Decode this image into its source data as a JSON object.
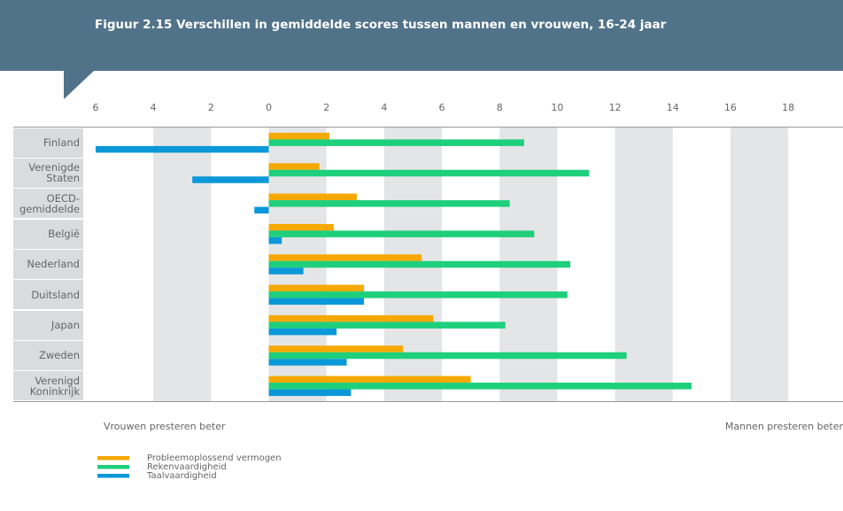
{
  "chart_data": {
    "type": "hbar",
    "title": "Figuur 2.15 Verschillen in gemiddelde scores tussen mannen en vrouwen, 16-24 jaar",
    "categories": [
      "Finland",
      "Verenigde Staten",
      "OECD-gemiddelde",
      "België",
      "Nederland",
      "Duitsland",
      "Japan",
      "Zweden",
      "Verenigd Koninkrijk"
    ],
    "series": [
      {
        "name": "Probleemoplossend vermogen",
        "color": "#f5a800",
        "values": [
          2.1,
          1.75,
          3.05,
          2.25,
          5.3,
          3.3,
          5.7,
          4.65,
          7.0
        ]
      },
      {
        "name": "Rekenvaardigheid",
        "color": "#1ecf7c",
        "values": [
          8.85,
          11.1,
          8.35,
          9.2,
          10.45,
          10.35,
          8.2,
          12.4,
          14.65
        ]
      },
      {
        "name": "Taalvaardigheid",
        "color": "#0a98d8",
        "values": [
          -6.0,
          -2.65,
          -0.5,
          0.45,
          1.2,
          3.3,
          2.35,
          2.7,
          2.85
        ]
      }
    ],
    "xlim": [
      -6,
      19.9
    ],
    "xticks": [
      {
        "value": -6,
        "label": "6"
      },
      {
        "value": -4,
        "label": "4"
      },
      {
        "value": -2,
        "label": "2"
      },
      0,
      2,
      4,
      6,
      8,
      10,
      12,
      14,
      16,
      18
    ],
    "annotations": [
      "Vrouwen presteren beter",
      "Mannen presteren beter"
    ]
  }
}
